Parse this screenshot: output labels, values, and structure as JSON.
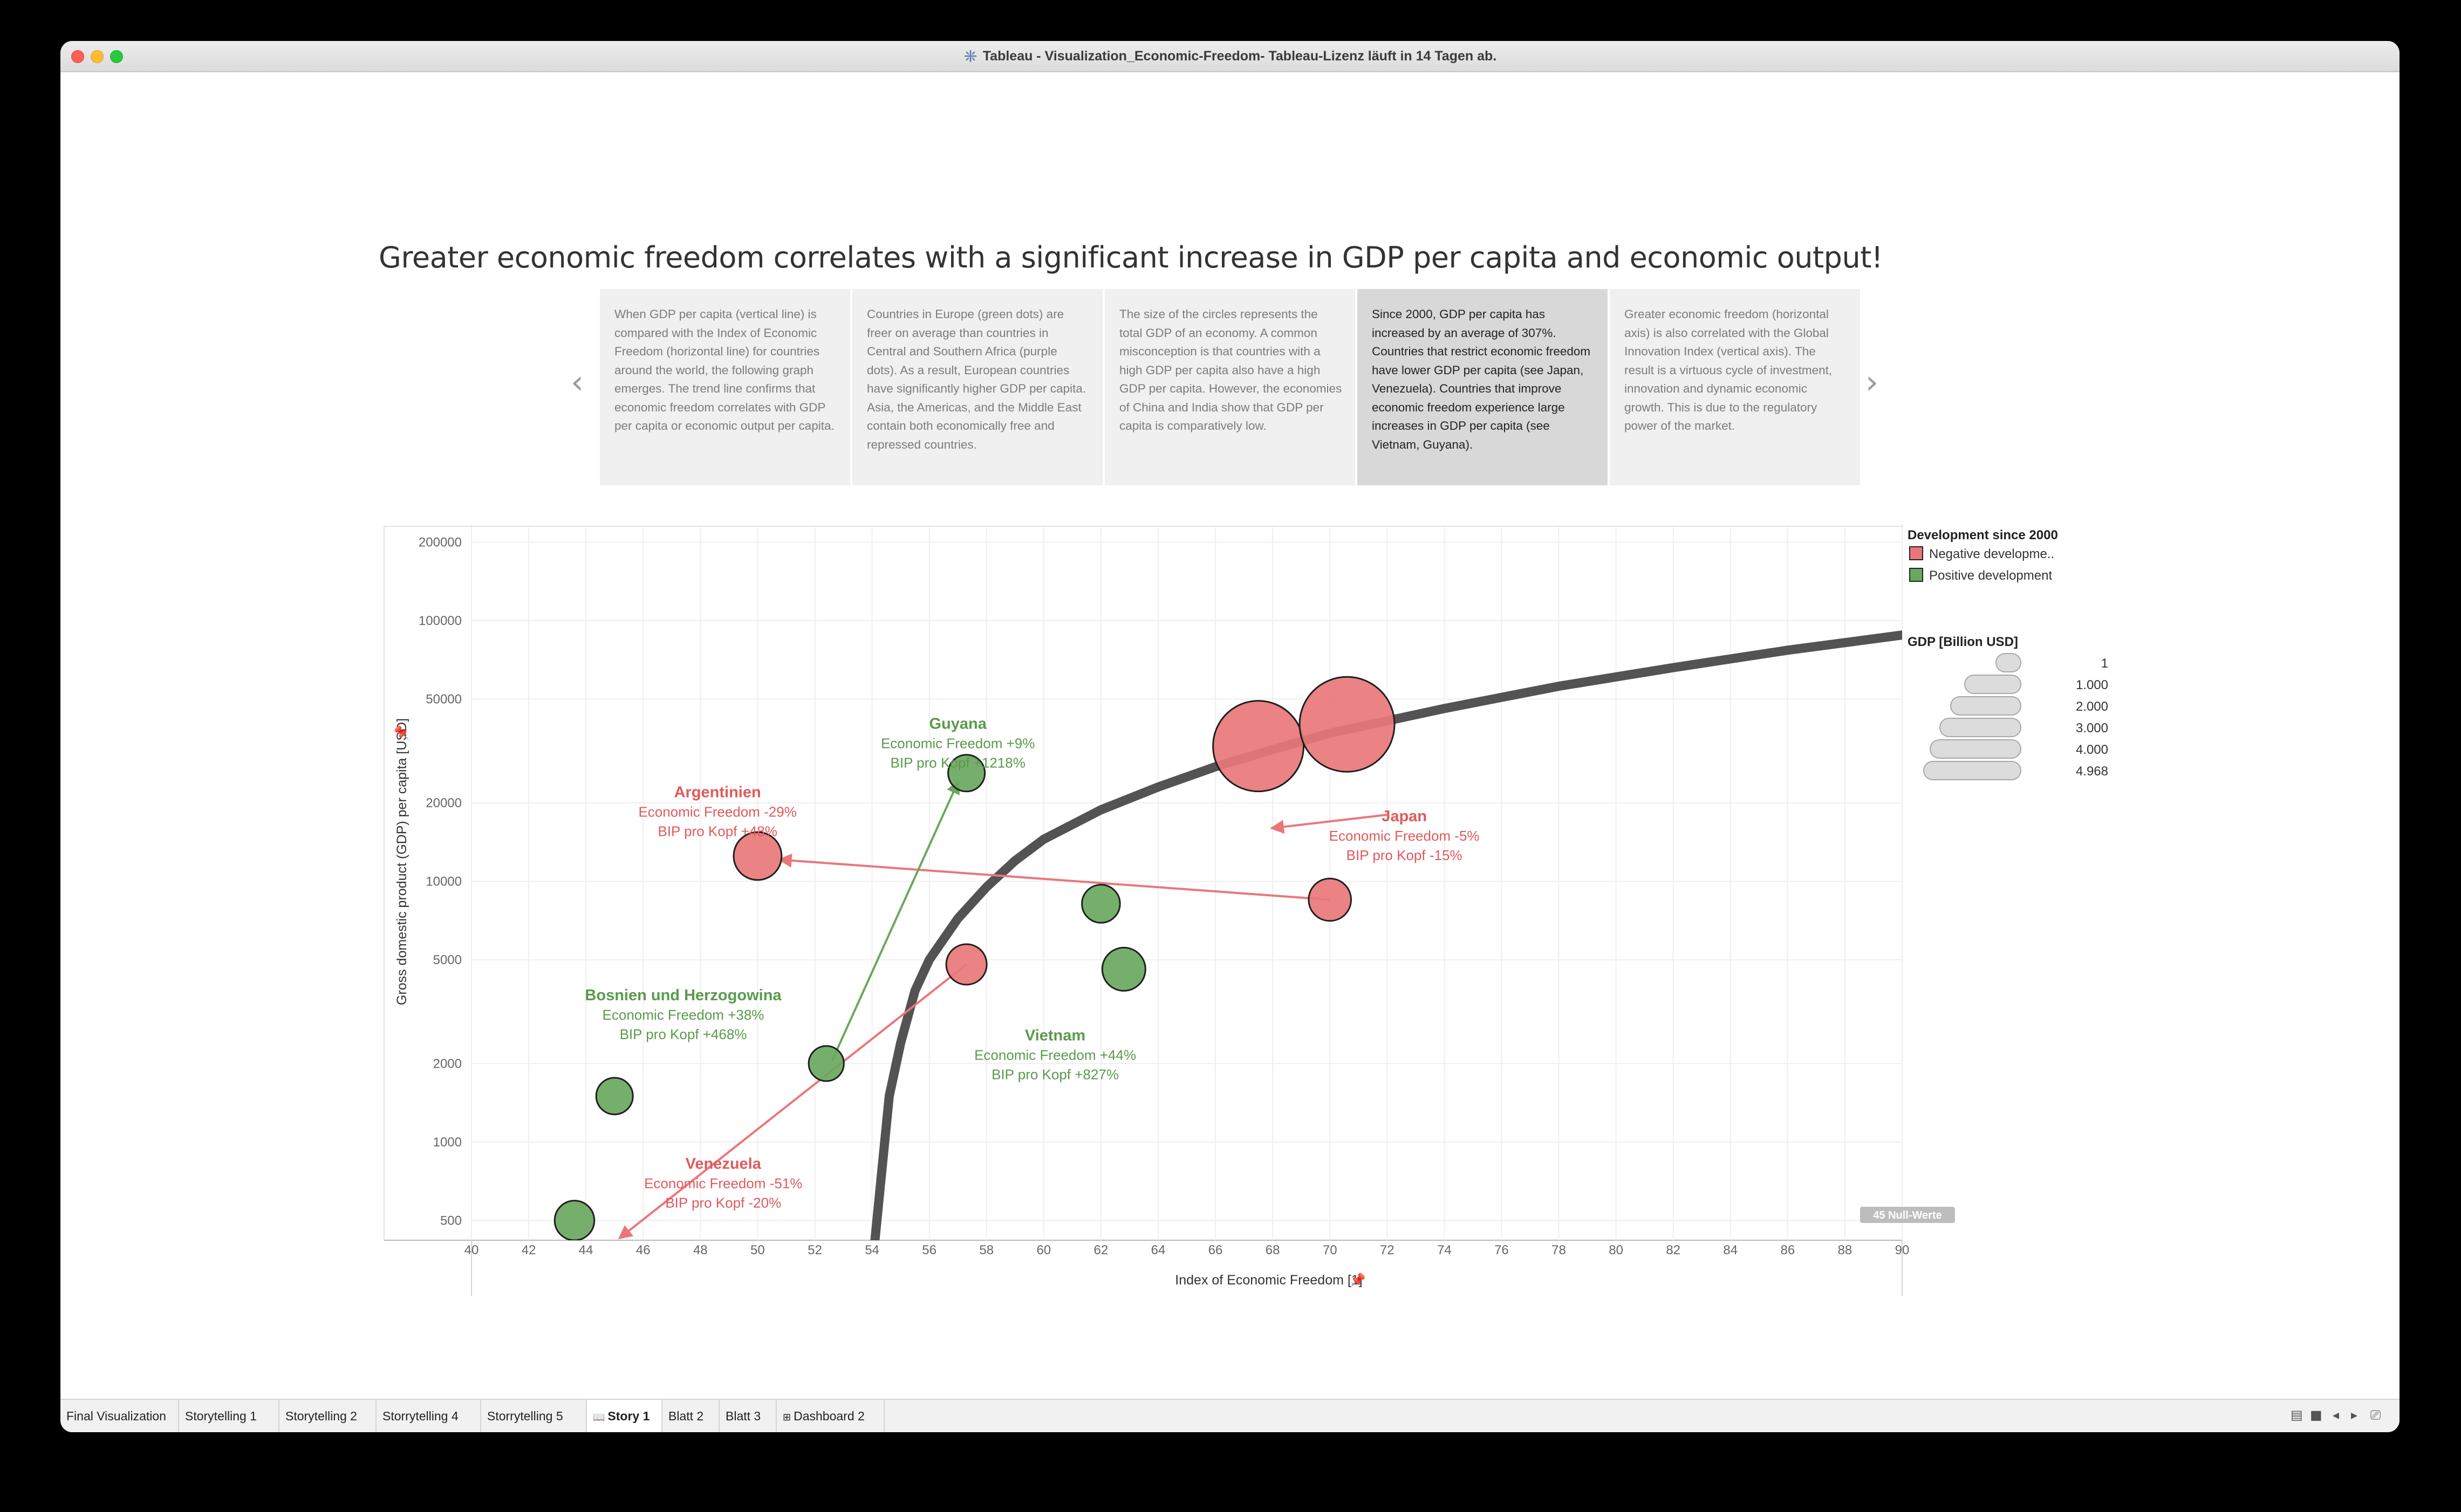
{
  "window": {
    "title": "Tableau - Visualization_Economic-Freedom- Tableau-Lizenz läuft in 14 Tagen ab.",
    "icon": "tableau-icon"
  },
  "story": {
    "title": "Greater economic freedom correlates with a significant increase in GDP per capita and economic output!",
    "nav_prev": "‹",
    "nav_next": "›",
    "points": [
      "When GDP per capita (vertical line) is compared with the Index of Economic Freedom (horizontal line) for countries around the world, the following graph emerges. The trend line confirms that economic freedom correlates with GDP per capita or economic output per capita.",
      "Countries in Europe (green dots) are freer on average than countries in Central and Southern Africa (purple dots). As a result, European countries have significantly higher GDP per capita. Asia, the Americas, and the Middle East contain both economically free and repressed countries.",
      "The size of the circles represents the total GDP of an economy. A common misconception is that countries with a high GDP per capita also have a high GDP per capita. However, the economies of China and India show that GDP per capita is comparatively low.",
      "Since 2000, GDP per capita has increased by an average of 307%. Countries that restrict economic freedom have lower GDP per capita (see Japan, Venezuela). Countries that improve economic freedom experience large increases in GDP per capita (see Vietnam, Guyana).",
      "Greater economic freedom (horizontal axis) is also correlated with the Global Innovation Index (vertical axis).  The result is a virtuous cycle of investment, innovation and dynamic economic growth. This is due to the regulatory power of the market."
    ],
    "active_point": 3
  },
  "chart_data": {
    "type": "scatter",
    "xlabel": "Index of Economic Freedom [1]",
    "ylabel": "Gross domestic product (GDP) per capita [USD]",
    "xlim": [
      40,
      90
    ],
    "ylim": [
      420,
      230000
    ],
    "y_scale": "log",
    "x_ticks": [
      "40",
      "42",
      "44",
      "46",
      "48",
      "50",
      "52",
      "54",
      "56",
      "58",
      "60",
      "62",
      "64",
      "66",
      "68",
      "70",
      "72",
      "74",
      "76",
      "78",
      "80",
      "82",
      "84",
      "86",
      "88",
      "90"
    ],
    "y_ticks": [
      {
        "label": "200000",
        "value": 200000
      },
      {
        "label": "100000",
        "value": 100000
      },
      {
        "label": "50000",
        "value": 50000
      },
      {
        "label": "20000",
        "value": 20000
      },
      {
        "label": "10000",
        "value": 10000
      },
      {
        "label": "5000",
        "value": 5000
      },
      {
        "label": "2000",
        "value": 2000
      },
      {
        "label": "1000",
        "value": 1000
      },
      {
        "label": "500",
        "value": 500
      }
    ],
    "grid": true,
    "colors": {
      "negative": "#e9777a",
      "positive": "#6aa85e",
      "trend": "#4a4a4a",
      "neg_text": "#e05a5c",
      "pos_text": "#5a9a4c"
    },
    "points": [
      {
        "x": 67.5,
        "y": 33000,
        "gdp": 4400,
        "dev": "negative"
      },
      {
        "x": 70.6,
        "y": 40000,
        "gdp": 4968,
        "dev": "negative"
      },
      {
        "x": 70.0,
        "y": 8500,
        "gdp": 400,
        "dev": "negative"
      },
      {
        "x": 50.0,
        "y": 12500,
        "gdp": 640,
        "dev": "negative"
      },
      {
        "x": 57.3,
        "y": 4800,
        "gdp": 330,
        "dev": "negative"
      },
      {
        "x": 57.3,
        "y": 26000,
        "gdp": 210,
        "dev": "positive"
      },
      {
        "x": 62.0,
        "y": 8200,
        "gdp": 250,
        "dev": "positive"
      },
      {
        "x": 62.8,
        "y": 4600,
        "gdp": 430,
        "dev": "positive"
      },
      {
        "x": 52.4,
        "y": 2000,
        "gdp": 170,
        "dev": "positive"
      },
      {
        "x": 45.0,
        "y": 1500,
        "gdp": 210,
        "dev": "positive"
      },
      {
        "x": 43.6,
        "y": 500,
        "gdp": 300,
        "dev": "positive"
      }
    ],
    "arrows": [
      {
        "from": [
          70.0,
          8500
        ],
        "to": [
          50.8,
          12100
        ],
        "dev": "negative"
      },
      {
        "from": [
          72.0,
          18000
        ],
        "to": [
          68.0,
          16000
        ],
        "dev": "negative"
      },
      {
        "from": [
          57.3,
          4800
        ],
        "to": [
          45.2,
          430
        ],
        "dev": "negative"
      },
      {
        "from": [
          52.6,
          2050
        ],
        "to": [
          57.0,
          24000
        ],
        "dev": "positive"
      }
    ],
    "trend": [
      [
        54.1,
        420
      ],
      [
        54.3,
        700
      ],
      [
        54.6,
        1500
      ],
      [
        55,
        2400
      ],
      [
        55.5,
        3800
      ],
      [
        56,
        5000
      ],
      [
        57,
        7200
      ],
      [
        58,
        9500
      ],
      [
        59,
        12000
      ],
      [
        60,
        14500
      ],
      [
        62,
        18800
      ],
      [
        64,
        23000
      ],
      [
        66,
        27500
      ],
      [
        68,
        32000
      ],
      [
        70,
        37000
      ],
      [
        74,
        46000
      ],
      [
        78,
        56000
      ],
      [
        82,
        66000
      ],
      [
        86,
        77000
      ],
      [
        90,
        88000
      ],
      [
        93,
        98000
      ]
    ],
    "annotations": [
      {
        "title": "Guyana",
        "line1": "Economic Freedom +9%",
        "line2": "BIP pro Kopf +1218%",
        "x": 57.0,
        "y": 38500,
        "dev": "positive"
      },
      {
        "title": "Argentinien",
        "line1": "Economic Freedom -29%",
        "line2": "BIP pro Kopf +48%",
        "x": 48.6,
        "y": 21000,
        "dev": "negative"
      },
      {
        "title": "Japan",
        "line1": "Economic Freedom -5%",
        "line2": "BIP pro Kopf -15%",
        "x": 72.6,
        "y": 17000,
        "dev": "negative"
      },
      {
        "title": "Bosnien und Herzogowina",
        "line1": "Economic Freedom +38%",
        "line2": "BIP pro Kopf +468%",
        "x": 47.4,
        "y": 3500,
        "dev": "positive"
      },
      {
        "title": "Vietnam",
        "line1": "Economic Freedom +44%",
        "line2": "BIP pro Kopf +827%",
        "x": 60.4,
        "y": 2450,
        "dev": "positive"
      },
      {
        "title": "Venezuela",
        "line1": "Economic Freedom -51%",
        "line2": "BIP pro Kopf -20%",
        "x": 48.8,
        "y": 790,
        "dev": "negative"
      }
    ],
    "null_values_label": "45 Null-Werte",
    "legend": {
      "color_title": "Development since 2000",
      "color_items": [
        {
          "label": "Negative developme..",
          "dev": "negative"
        },
        {
          "label": "Positive development",
          "dev": "positive"
        }
      ],
      "size_title": "GDP [Billion USD]",
      "size_items": [
        "1",
        "1.000",
        "2.000",
        "3.000",
        "4.000",
        "4.968"
      ],
      "placement": "right"
    }
  },
  "tabs": [
    {
      "label": "Final Visualization",
      "icon": ""
    },
    {
      "label": "Storytelling 1",
      "icon": ""
    },
    {
      "label": "Storytelling 2",
      "icon": ""
    },
    {
      "label": "Storrytelling 4",
      "icon": ""
    },
    {
      "label": "Storrytelling 5",
      "icon": ""
    },
    {
      "label": "Story 1",
      "icon": "story-icon"
    },
    {
      "label": "Blatt 2",
      "icon": ""
    },
    {
      "label": "Blatt 3",
      "icon": ""
    },
    {
      "label": "Dashboard 2",
      "icon": "dashboard-icon"
    }
  ],
  "active_tab": 5
}
